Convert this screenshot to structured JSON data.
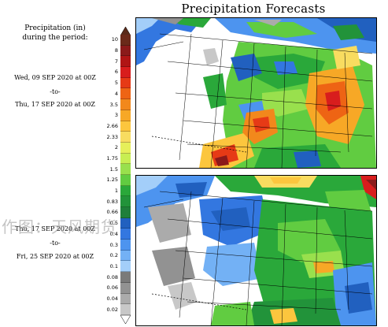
{
  "title": "Precipitation Forecasts",
  "header_line1": "Precipitation (in)",
  "header_line2": "during the period:",
  "period1": {
    "start": "Wed, 09 SEP 2020 at 00Z",
    "sep": "-to-",
    "end": "Thu, 17 SEP 2020 at 00Z"
  },
  "period2": {
    "start": "Thu, 17 SEP 2020 at 00Z",
    "sep": "-to-",
    "end": "Fri, 25 SEP 2020 at 00Z"
  },
  "watermark": "作图：天风期货",
  "legend": {
    "labels": [
      "10",
      "8",
      "7",
      "6",
      "5",
      "4",
      "3.5",
      "3",
      "2.66",
      "2.33",
      "2",
      "1.75",
      "1.5",
      "1.25",
      "1",
      "0.83",
      "0.66",
      "0.5",
      "0.4",
      "0.3",
      "0.2",
      "0.1",
      "0.08",
      "0.06",
      "0.04",
      "0.02"
    ],
    "colors": [
      "#6b2a1a",
      "#8b1a1a",
      "#b01515",
      "#d81d1d",
      "#e63a16",
      "#ee6414",
      "#f2881c",
      "#f7a826",
      "#fcc63e",
      "#f8dc60",
      "#e6ef5a",
      "#c8ee52",
      "#99e04d",
      "#61cc41",
      "#2aa83a",
      "#22933a",
      "#1f7f3a",
      "#2160bf",
      "#3377e0",
      "#4d94ef",
      "#73b1f5",
      "#a3cef9",
      "#7a7a7a",
      "#929292",
      "#ababab",
      "#c8c8c8"
    ]
  }
}
